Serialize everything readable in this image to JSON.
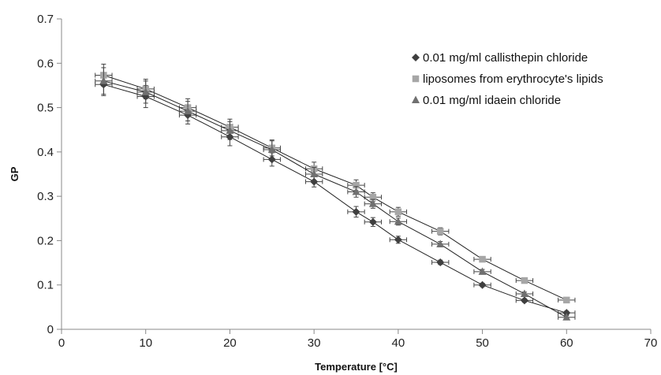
{
  "chart_data": {
    "type": "scatter",
    "xlabel": "Temperature [°C]",
    "ylabel": "GP",
    "xlim": [
      0,
      70
    ],
    "ylim": [
      0,
      0.7
    ],
    "xticks": [
      0,
      10,
      20,
      30,
      40,
      50,
      60,
      70
    ],
    "yticks": [
      0,
      0.1,
      0.2,
      0.3,
      0.4,
      0.5,
      0.6,
      0.7
    ],
    "ytick_labels": [
      "0",
      "0.1",
      "0.2",
      "0.3",
      "0.4",
      "0.5",
      "0.6",
      "0.7"
    ],
    "grid": false,
    "legend_position": "top-right",
    "x_error": 1,
    "series": [
      {
        "name": "0.01 mg/ml callisthepin chloride",
        "marker": "diamond",
        "color": "#3f3f3f",
        "x": [
          5,
          10,
          15,
          20,
          25,
          30,
          35,
          37,
          40,
          45,
          50,
          55,
          60
        ],
        "y": [
          0.552,
          0.525,
          0.483,
          0.434,
          0.383,
          0.333,
          0.265,
          0.242,
          0.202,
          0.151,
          0.1,
          0.065,
          0.037
        ],
        "y_error": [
          0.025,
          0.025,
          0.02,
          0.02,
          0.015,
          0.012,
          0.012,
          0.01,
          0.008,
          0.005,
          0.004,
          0.004,
          0.004
        ]
      },
      {
        "name": "liposomes from erythrocyte's lipids",
        "marker": "square",
        "color": "#a6a6a6",
        "x": [
          5,
          10,
          15,
          20,
          25,
          30,
          35,
          37,
          40,
          45,
          50,
          55,
          60
        ],
        "y": [
          0.573,
          0.542,
          0.5,
          0.456,
          0.409,
          0.362,
          0.325,
          0.298,
          0.265,
          0.221,
          0.158,
          0.11,
          0.066
        ],
        "y_error": [
          0.025,
          0.022,
          0.02,
          0.018,
          0.018,
          0.015,
          0.012,
          0.01,
          0.01,
          0.008,
          0.005,
          0.004,
          0.004
        ]
      },
      {
        "name": "0.01 mg/ml idaein chloride",
        "marker": "triangle",
        "color": "#707070",
        "x": [
          5,
          10,
          15,
          20,
          25,
          30,
          35,
          37,
          40,
          45,
          50,
          55,
          60
        ],
        "y": [
          0.56,
          0.535,
          0.492,
          0.448,
          0.405,
          0.35,
          0.31,
          0.283,
          0.243,
          0.192,
          0.13,
          0.08,
          0.027
        ],
        "y_error": [
          0.03,
          0.025,
          0.022,
          0.02,
          0.02,
          0.015,
          0.012,
          0.01,
          0.008,
          0.006,
          0.005,
          0.004,
          0.004
        ]
      }
    ]
  }
}
